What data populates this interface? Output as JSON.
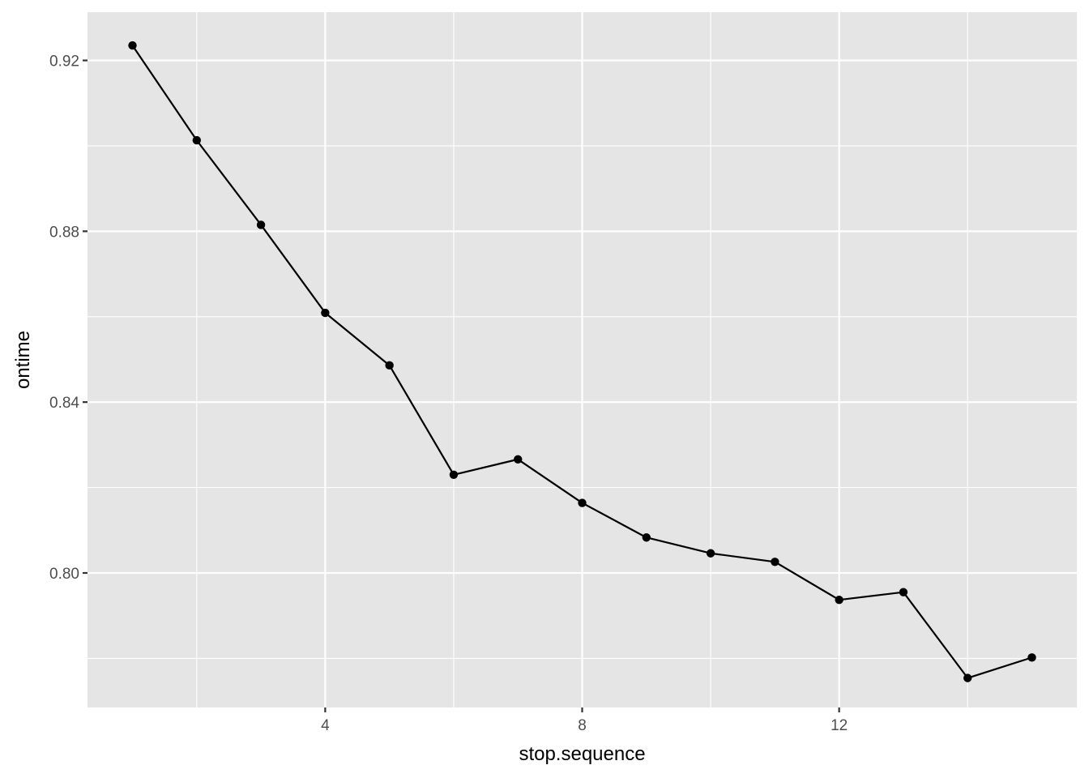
{
  "chart_data": {
    "type": "line",
    "xlabel": "stop.sequence",
    "ylabel": "ontime",
    "x_ticks": [
      4,
      8,
      12
    ],
    "x_tick_labels": [
      "4",
      "8",
      "12"
    ],
    "x_minor": [
      2,
      6,
      10,
      14
    ],
    "y_ticks": [
      0.8,
      0.84,
      0.88,
      0.92
    ],
    "y_tick_labels": [
      "0.80",
      "0.84",
      "0.88",
      "0.92"
    ],
    "y_minor": [
      0.78,
      0.82,
      0.86,
      0.9
    ],
    "xlim": [
      0.3,
      15.7
    ],
    "ylim": [
      0.7685,
      0.9313
    ],
    "grid": true,
    "points_shown": true,
    "colors": {
      "panel": "#e5e5e5",
      "grid": "#ffffff",
      "line": "#000000",
      "tick_text": "#4d4d4d"
    },
    "series": [
      {
        "x": [
          1,
          2,
          3,
          4,
          5,
          6,
          7,
          8,
          9,
          10,
          11,
          12,
          13,
          14,
          15
        ],
        "values": [
          0.9235,
          0.9013,
          0.8815,
          0.8609,
          0.8486,
          0.823,
          0.8266,
          0.8164,
          0.8083,
          0.8046,
          0.8026,
          0.7937,
          0.7955,
          0.7754,
          0.7802
        ]
      }
    ]
  }
}
